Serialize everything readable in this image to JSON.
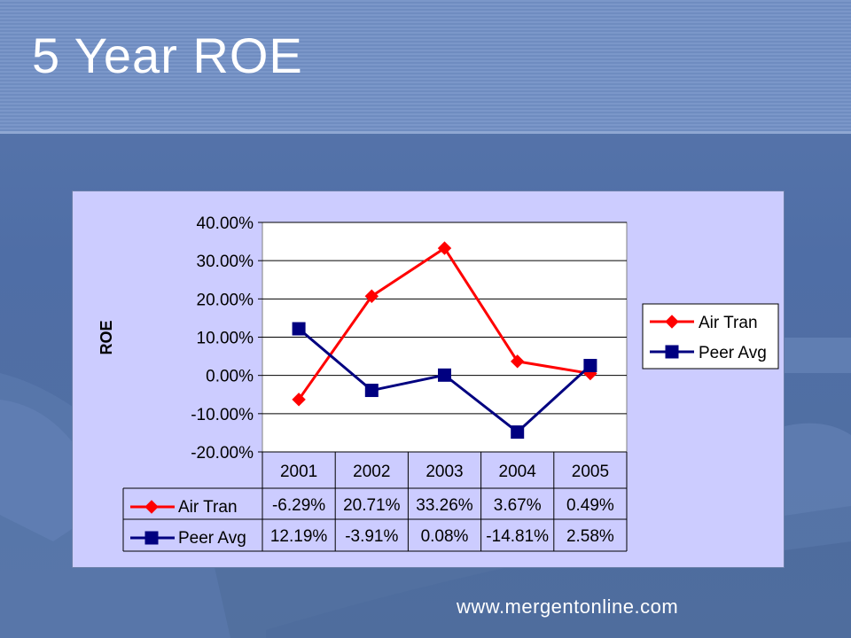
{
  "slide": {
    "title": "5 Year ROE",
    "footer_url": "www.mergentonline.com"
  },
  "colors": {
    "air_tran": "#ff0000",
    "peer_avg": "#000080",
    "chart_bg": "#ccccff",
    "plot_bg": "#ffffff"
  },
  "chart_data": {
    "type": "line",
    "ylabel": "ROE",
    "categories": [
      "2001",
      "2002",
      "2003",
      "2004",
      "2005"
    ],
    "ylim": [
      -0.2,
      0.4
    ],
    "y_ticks": [
      0.4,
      0.3,
      0.2,
      0.1,
      0.0,
      -0.1,
      -0.2
    ],
    "y_tick_labels": [
      "40.00%",
      "30.00%",
      "20.00%",
      "10.00%",
      "0.00%",
      "-10.00%",
      "-20.00%"
    ],
    "grid": true,
    "legend_position": "right",
    "series": [
      {
        "name": "Air Tran",
        "marker": "diamond",
        "values": [
          -0.0629,
          0.2071,
          0.3326,
          0.0367,
          0.0049
        ],
        "table_labels": [
          "-6.29%",
          "20.71%",
          "33.26%",
          "3.67%",
          "0.49%"
        ]
      },
      {
        "name": "Peer Avg",
        "marker": "square",
        "values": [
          0.1219,
          -0.0391,
          0.0008,
          -0.1481,
          0.0258
        ],
        "table_labels": [
          "12.19%",
          "-3.91%",
          "0.08%",
          "-14.81%",
          "2.58%"
        ]
      }
    ]
  }
}
